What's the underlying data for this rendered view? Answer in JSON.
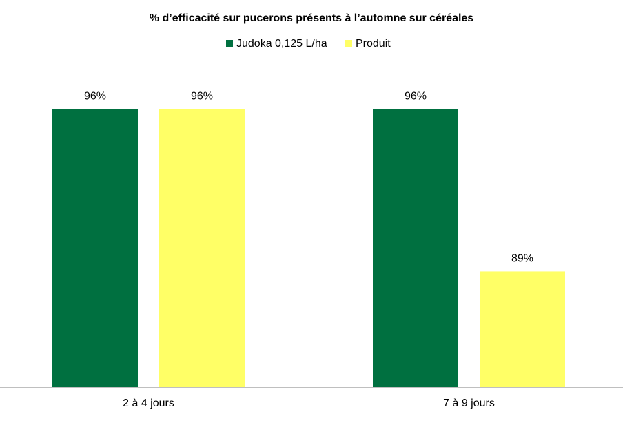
{
  "chart_data": {
    "type": "bar",
    "title": "% d’efficacité sur pucerons présents à l’automne sur céréales",
    "categories": [
      "2 à 4 jours",
      "7 à 9 jours"
    ],
    "series": [
      {
        "name": "Judoka 0,125 L/ha",
        "color": "#007040",
        "values": [
          96,
          96
        ],
        "value_labels": [
          "96%",
          "96%"
        ]
      },
      {
        "name": "Produit",
        "color": "#ffff66",
        "values": [
          96,
          89
        ],
        "value_labels": [
          "96%",
          "89%"
        ]
      }
    ],
    "ylim": [
      84,
      98
    ],
    "legend": "top"
  }
}
